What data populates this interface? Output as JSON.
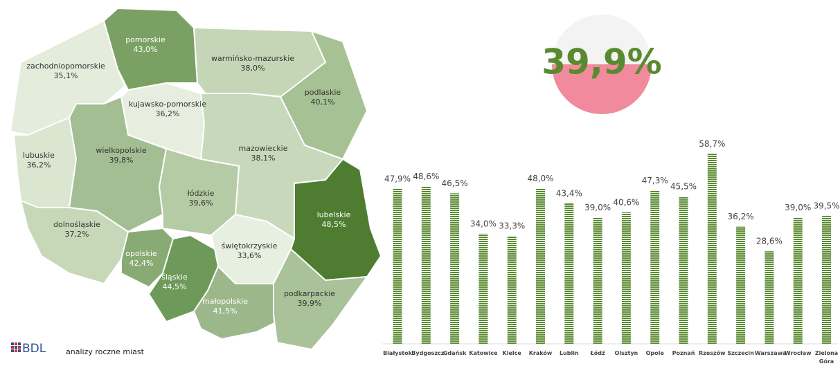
{
  "map": {
    "regions": [
      {
        "name": "zachodniopomorskie",
        "label": "35,1%"
      },
      {
        "name": "pomorskie",
        "label": "43,0%"
      },
      {
        "name": "warmińsko-mazurskie",
        "label": "38,0%"
      },
      {
        "name": "kujawsko-pomorskie",
        "label": "36,2%"
      },
      {
        "name": "podlaskie",
        "label": "40,1%"
      },
      {
        "name": "lubuskie",
        "label": "36,2%"
      },
      {
        "name": "wielkopolskie",
        "label": "39,8%"
      },
      {
        "name": "mazowieckie",
        "label": "38,1%"
      },
      {
        "name": "łódzkie",
        "label": "39,6%"
      },
      {
        "name": "lubelskie",
        "label": "48,5%"
      },
      {
        "name": "dolnośląskie",
        "label": "37,2%"
      },
      {
        "name": "opolskie",
        "label": "42,4%"
      },
      {
        "name": "świętokrzyskie",
        "label": "33,6%"
      },
      {
        "name": "śląskie",
        "label": "44,5%"
      },
      {
        "name": "małopolskie",
        "label": "41,5%"
      },
      {
        "name": "podkarpackie",
        "label": "39,9%"
      }
    ]
  },
  "highlight": "39,9%",
  "logo": "BDL",
  "footer": "analizy roczne miast",
  "chart_data": {
    "type": "bar",
    "categories": [
      "Białystok",
      "Bydgoszcz",
      "Gdańsk",
      "Katowice",
      "Kielce",
      "Kraków",
      "Lublin",
      "Łódź",
      "Olsztyn",
      "Opole",
      "Poznań",
      "Rzeszów",
      "Szczecin",
      "Warszawa",
      "Wrocław",
      "Zielona Góra"
    ],
    "values": [
      47.9,
      48.6,
      46.5,
      34.0,
      33.3,
      48.0,
      43.4,
      39.0,
      40.6,
      47.3,
      45.5,
      58.7,
      36.2,
      28.6,
      39.0,
      39.5
    ],
    "value_labels": [
      "47,9%",
      "48,6%",
      "46,5%",
      "34,0%",
      "33,3%",
      "48,0%",
      "43,4%",
      "39,0%",
      "40,6%",
      "47,3%",
      "45,5%",
      "58,7%",
      "36,2%",
      "28,6%",
      "39,0%",
      "39,5%"
    ],
    "color": "#5b8b33"
  }
}
